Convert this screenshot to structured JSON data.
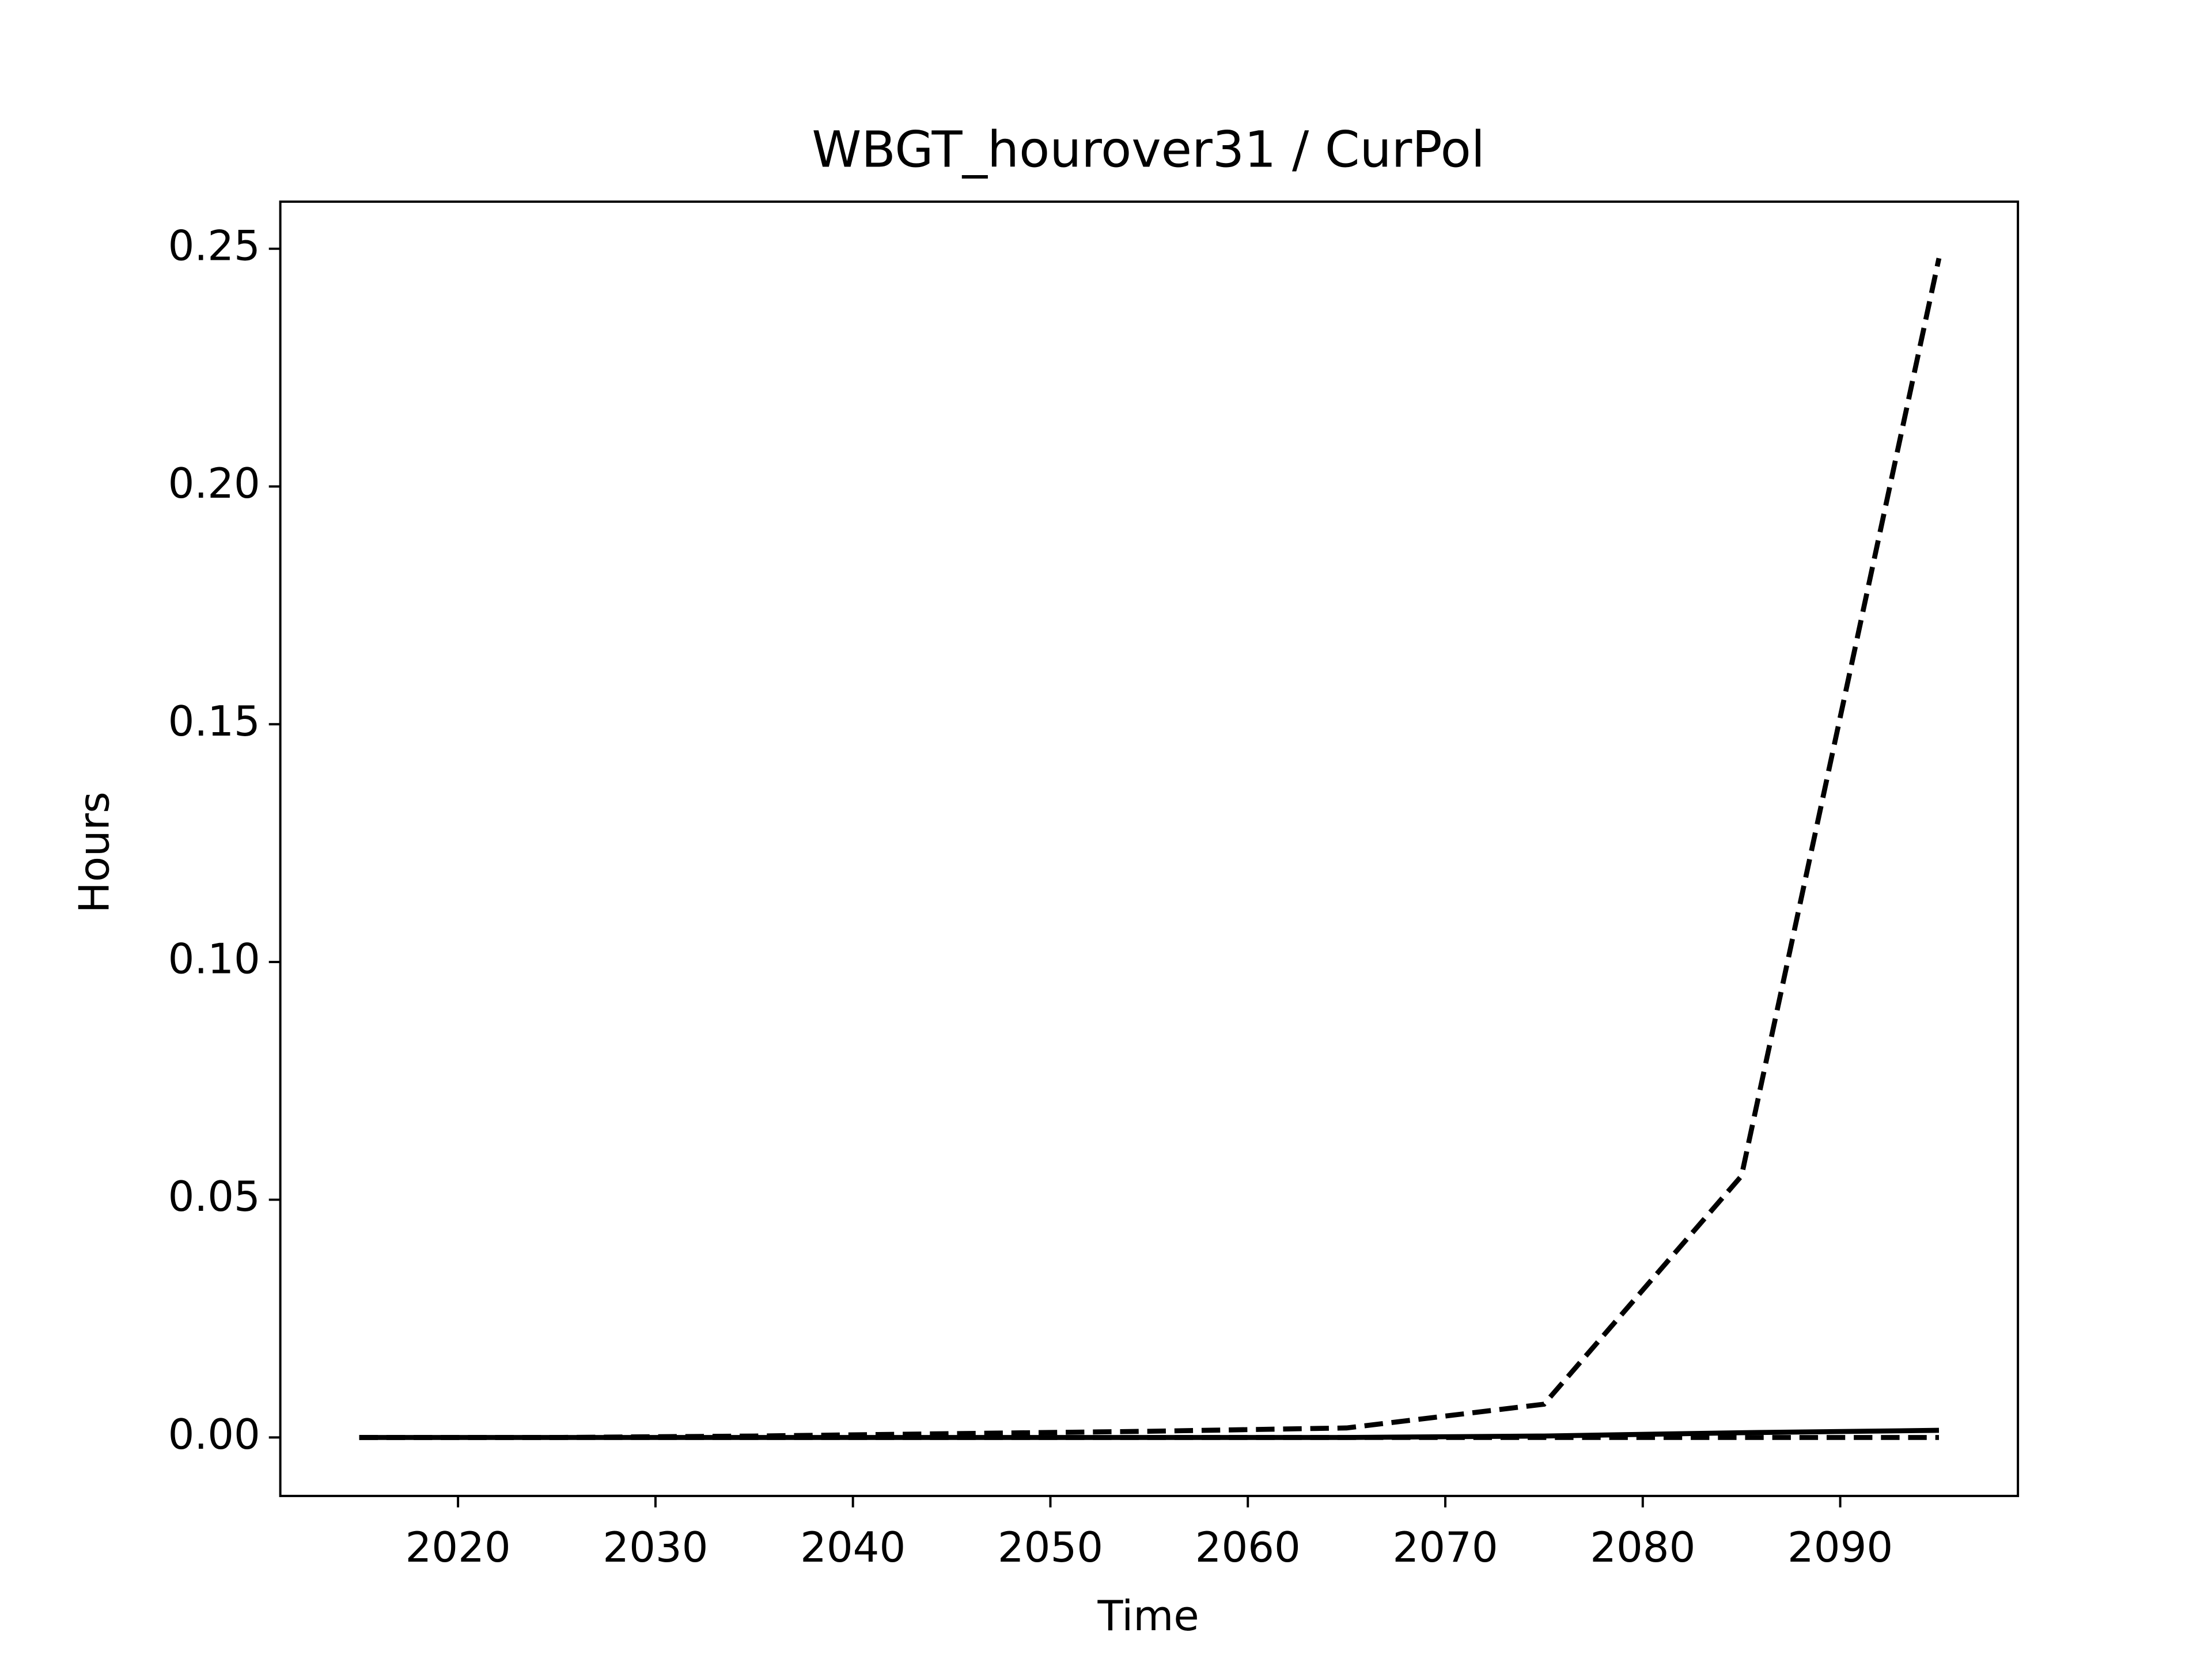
{
  "chart_data": {
    "type": "line",
    "title": "WBGT_hourover31 / CurPol",
    "xlabel": "Time",
    "ylabel": "Hours",
    "x": [
      2015,
      2025,
      2035,
      2045,
      2055,
      2065,
      2075,
      2085,
      2095
    ],
    "series": [
      {
        "color": "#000000",
        "dash": true,
        "values": [
          0,
          0,
          0.0003,
          0.0008,
          0.0013,
          0.002,
          0.007,
          0.055,
          0.248
        ]
      },
      {
        "color": "#000000",
        "dash": false,
        "values": [
          0,
          0,
          0,
          0,
          0,
          0,
          0.0003,
          0.001,
          0.0015
        ]
      },
      {
        "color": "#000000",
        "dash": true,
        "values": [
          0,
          0,
          0,
          0,
          0,
          0,
          0,
          0,
          0
        ]
      }
    ],
    "xlim": [
      2011,
      2099
    ],
    "xticks": [
      2020,
      2030,
      2040,
      2050,
      2060,
      2070,
      2080,
      2090
    ],
    "ylim": [
      -0.0123,
      0.2599
    ],
    "yticks": [
      {
        "value": 0,
        "label": "0.00"
      },
      {
        "value": 0.05,
        "label": "0.05"
      },
      {
        "value": 0.1,
        "label": "0.10"
      },
      {
        "value": 0.15,
        "label": "0.15"
      },
      {
        "value": 0.2,
        "label": "0.20"
      },
      {
        "value": 0.25,
        "label": "0.25"
      }
    ],
    "grid": false
  }
}
